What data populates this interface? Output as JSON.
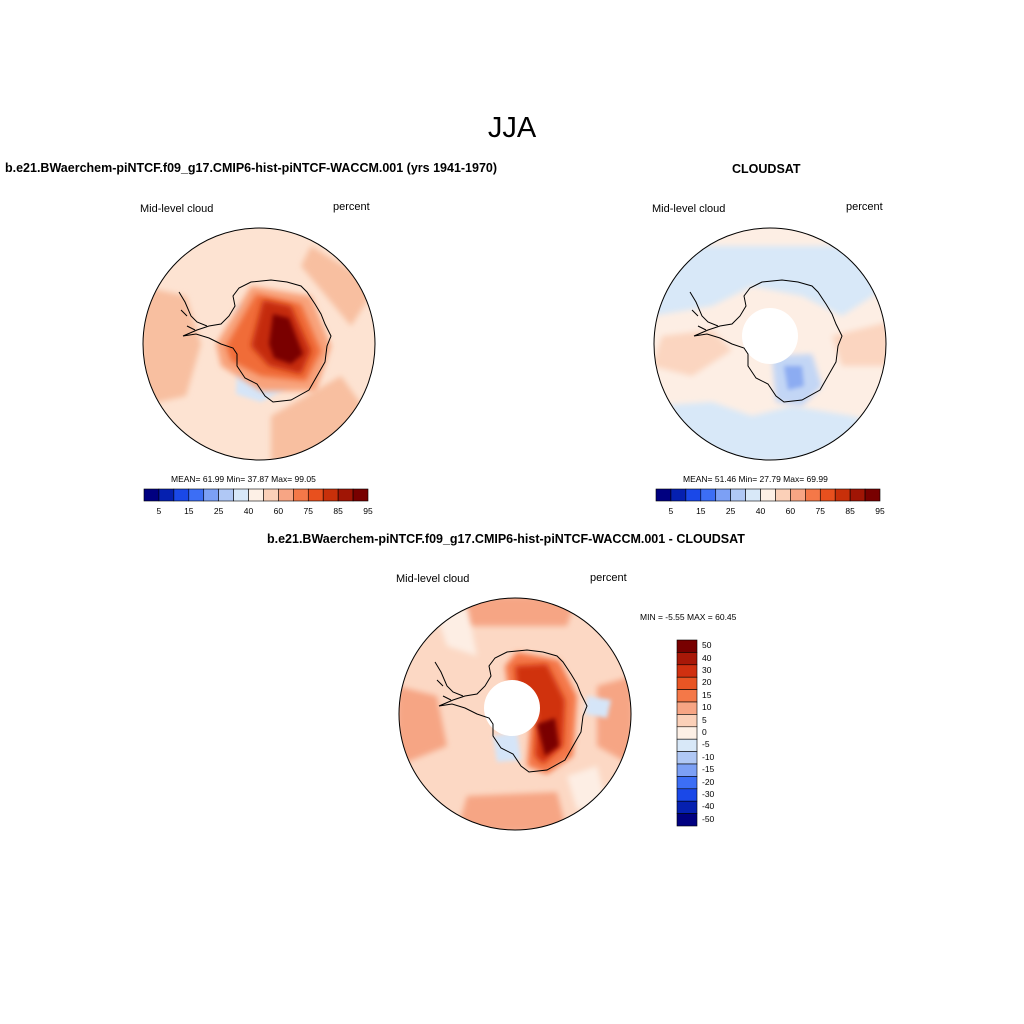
{
  "figure": {
    "title": "JJA"
  },
  "panels": {
    "model": {
      "title": "b.e21.BWaerchem-piNTCF.f09_g17.CMIP6-hist-piNTCF-WACCM.001 (yrs 1941-1970)",
      "left_label": "Mid-level cloud",
      "right_label": "percent",
      "stats": "MEAN=  61.99  Min=  37.87  Max=  99.05"
    },
    "obs": {
      "title": "CLOUDSAT",
      "left_label": "Mid-level cloud",
      "right_label": "percent",
      "stats": "MEAN=  51.46  Min=  27.79  Max=  69.99"
    },
    "diff": {
      "title": "b.e21.BWaerchem-piNTCF.f09_g17.CMIP6-hist-piNTCF-WACCM.001 - CLOUDSAT",
      "left_label": "Mid-level cloud",
      "right_label": "percent",
      "stats": "MIN =  -5.55 MAX =  60.45"
    }
  },
  "colorbars": {
    "abs_labels": [
      "5",
      "15",
      "25",
      "40",
      "60",
      "75",
      "85",
      "95"
    ],
    "abs_colors": [
      "#000080",
      "#0520b0",
      "#1a48e8",
      "#3c6ef5",
      "#7ca0f5",
      "#b0c8f5",
      "#d8e8f8",
      "#fdf0e6",
      "#fbd0b8",
      "#f7a584",
      "#f47848",
      "#e8501e",
      "#c8300a",
      "#a01505",
      "#780000"
    ],
    "diff_labels": [
      "50",
      "40",
      "30",
      "20",
      "15",
      "10",
      "5",
      "0",
      "-5",
      "-10",
      "-15",
      "-20",
      "-30",
      "-40",
      "-50"
    ],
    "diff_colors": [
      "#780000",
      "#a81808",
      "#d03010",
      "#e85524",
      "#f47848",
      "#f7a584",
      "#fbd0b8",
      "#fdf0e6",
      "#d8e8f8",
      "#b0c8f5",
      "#7ca0f5",
      "#3c6ef5",
      "#1a48e8",
      "#0520b0",
      "#000080"
    ]
  },
  "colors": {
    "background": "#ffffff",
    "text": "#000000",
    "coast": "#000000"
  }
}
